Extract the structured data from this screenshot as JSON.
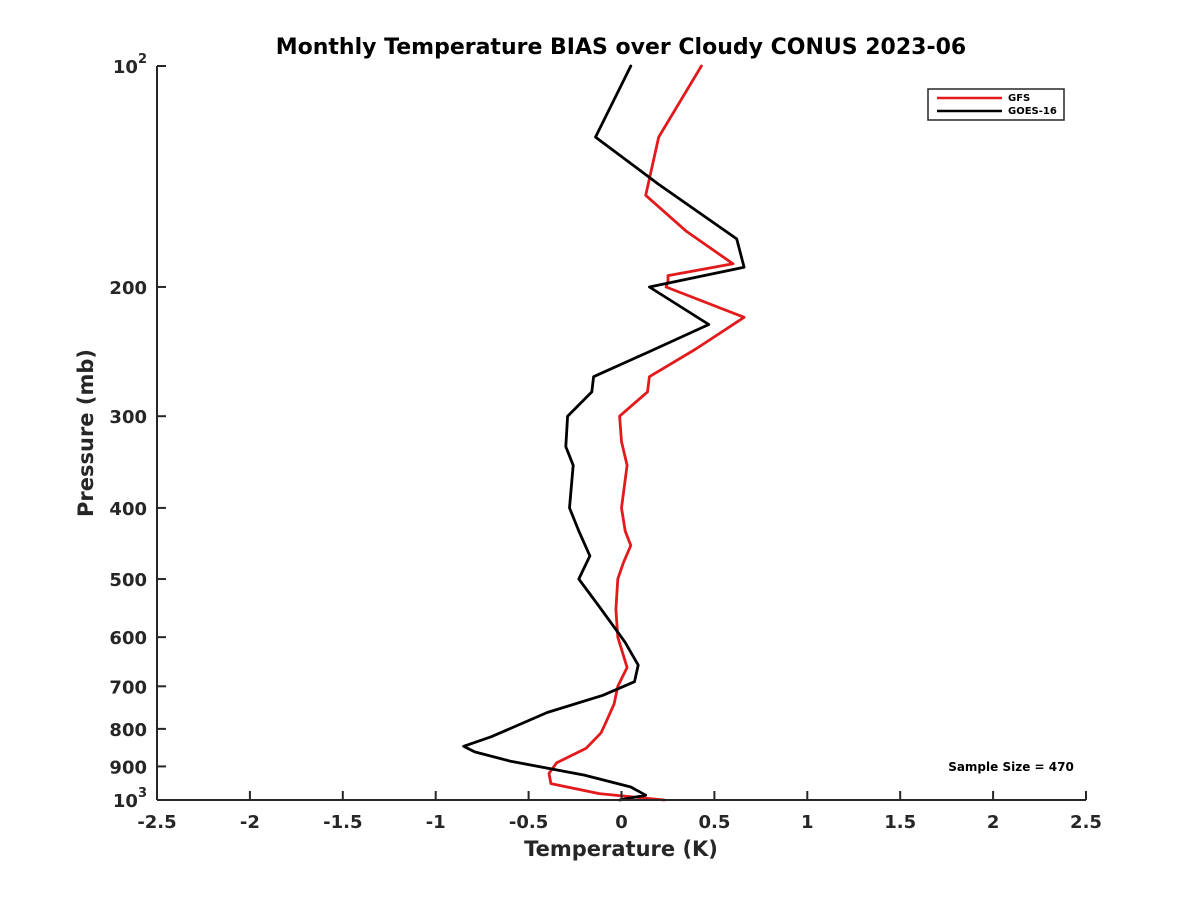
{
  "chart_data": {
    "type": "line",
    "title": "Monthly Temperature BIAS over Cloudy CONUS  2023-06",
    "xlabel": "Temperature (K)",
    "ylabel": "Pressure (mb)",
    "xlim": [
      -2.5,
      2.5
    ],
    "ylim": [
      100,
      1000
    ],
    "y_scale": "log",
    "y_reversed": true,
    "x_ticks": [
      "-2.5",
      "-2",
      "-1.5",
      "-1",
      "-0.5",
      "0",
      "0.5",
      "1",
      "1.5",
      "2",
      "2.5"
    ],
    "y_ticks": [
      {
        "value": 100,
        "base": "10",
        "sup": "2"
      },
      {
        "value": 200,
        "label": "200"
      },
      {
        "value": 300,
        "label": "300"
      },
      {
        "value": 400,
        "label": "400"
      },
      {
        "value": 500,
        "label": "500"
      },
      {
        "value": 600,
        "label": "600"
      },
      {
        "value": 700,
        "label": "700"
      },
      {
        "value": 800,
        "label": "800"
      },
      {
        "value": 900,
        "label": "900"
      },
      {
        "value": 1000,
        "base": "10",
        "sup": "3"
      }
    ],
    "grid": false,
    "legend_position": "top-right",
    "annotation": "Sample Size = 470",
    "series": [
      {
        "name": "GFS",
        "color": "#e31a1c",
        "points": [
          {
            "x": 0.43,
            "p": 100
          },
          {
            "x": 0.2,
            "p": 125
          },
          {
            "x": 0.13,
            "p": 150
          },
          {
            "x": 0.35,
            "p": 168
          },
          {
            "x": 0.6,
            "p": 186
          },
          {
            "x": 0.25,
            "p": 193
          },
          {
            "x": 0.25,
            "p": 196
          },
          {
            "x": 0.24,
            "p": 200
          },
          {
            "x": 0.66,
            "p": 220
          },
          {
            "x": 0.4,
            "p": 243
          },
          {
            "x": 0.15,
            "p": 265
          },
          {
            "x": 0.14,
            "p": 278
          },
          {
            "x": -0.01,
            "p": 300
          },
          {
            "x": 0.0,
            "p": 325
          },
          {
            "x": 0.03,
            "p": 350
          },
          {
            "x": 0.0,
            "p": 400
          },
          {
            "x": 0.02,
            "p": 430
          },
          {
            "x": 0.05,
            "p": 450
          },
          {
            "x": 0.01,
            "p": 475
          },
          {
            "x": -0.02,
            "p": 500
          },
          {
            "x": -0.03,
            "p": 550
          },
          {
            "x": -0.02,
            "p": 600
          },
          {
            "x": 0.03,
            "p": 660
          },
          {
            "x": -0.02,
            "p": 700
          },
          {
            "x": -0.04,
            "p": 740
          },
          {
            "x": -0.08,
            "p": 780
          },
          {
            "x": -0.11,
            "p": 810
          },
          {
            "x": -0.19,
            "p": 850
          },
          {
            "x": -0.35,
            "p": 890
          },
          {
            "x": -0.39,
            "p": 920
          },
          {
            "x": -0.38,
            "p": 950
          },
          {
            "x": -0.12,
            "p": 980
          },
          {
            "x": 0.23,
            "p": 1000
          }
        ]
      },
      {
        "name": "GOES-16",
        "color": "#000000",
        "points": [
          {
            "x": 0.05,
            "p": 100
          },
          {
            "x": -0.14,
            "p": 125
          },
          {
            "x": 0.2,
            "p": 145
          },
          {
            "x": 0.62,
            "p": 172
          },
          {
            "x": 0.66,
            "p": 188
          },
          {
            "x": 0.15,
            "p": 200
          },
          {
            "x": 0.47,
            "p": 225
          },
          {
            "x": 0.15,
            "p": 245
          },
          {
            "x": -0.15,
            "p": 265
          },
          {
            "x": -0.16,
            "p": 278
          },
          {
            "x": -0.29,
            "p": 300
          },
          {
            "x": -0.3,
            "p": 330
          },
          {
            "x": -0.26,
            "p": 350
          },
          {
            "x": -0.28,
            "p": 400
          },
          {
            "x": -0.23,
            "p": 430
          },
          {
            "x": -0.17,
            "p": 465
          },
          {
            "x": -0.23,
            "p": 500
          },
          {
            "x": -0.12,
            "p": 545
          },
          {
            "x": 0.02,
            "p": 610
          },
          {
            "x": 0.09,
            "p": 655
          },
          {
            "x": 0.07,
            "p": 690
          },
          {
            "x": -0.1,
            "p": 720
          },
          {
            "x": -0.4,
            "p": 760
          },
          {
            "x": -0.7,
            "p": 820
          },
          {
            "x": -0.85,
            "p": 845
          },
          {
            "x": -0.79,
            "p": 860
          },
          {
            "x": -0.6,
            "p": 885
          },
          {
            "x": -0.2,
            "p": 925
          },
          {
            "x": 0.05,
            "p": 960
          },
          {
            "x": 0.13,
            "p": 985
          },
          {
            "x": -0.01,
            "p": 1000
          }
        ]
      }
    ]
  }
}
